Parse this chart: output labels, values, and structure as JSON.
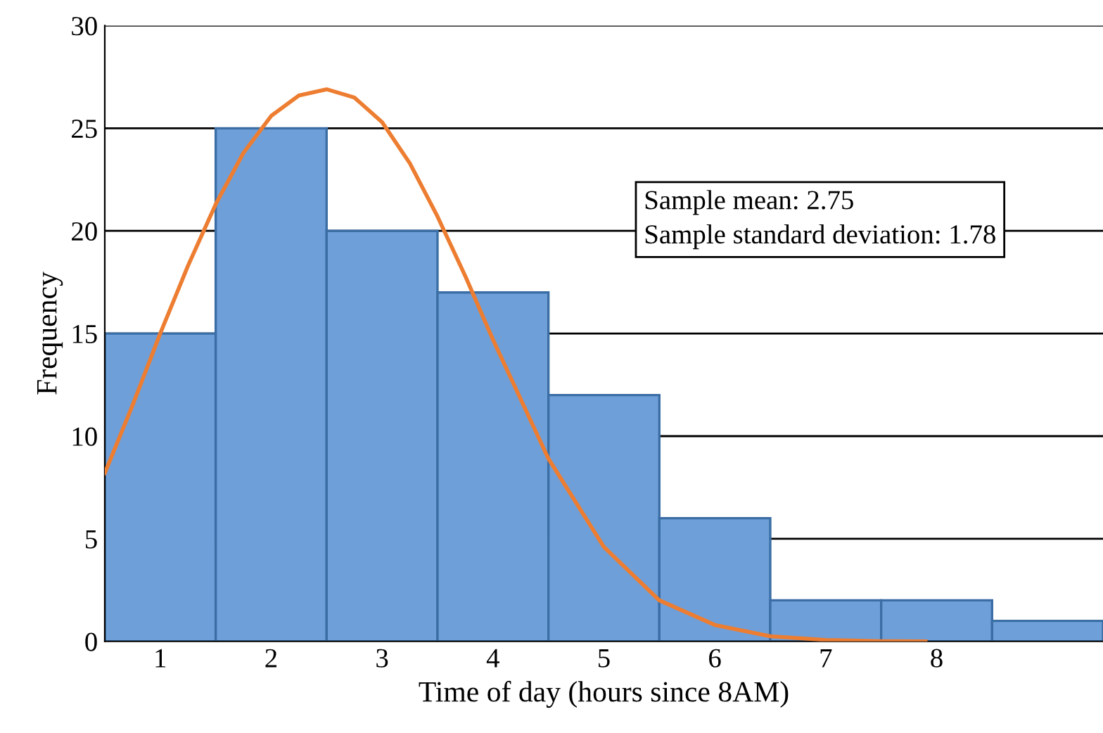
{
  "chart_data": {
    "type": "histogram",
    "xlabel": "Time of day (hours since 8AM)",
    "ylabel": "Frequency",
    "bins": [
      0.5,
      1.5,
      2.5,
      3.5,
      4.5,
      5.5,
      6.5,
      7.5,
      8.5,
      9.5
    ],
    "series": [
      {
        "color": "#6f9fd8",
        "values": [
          15,
          25,
          20,
          17,
          12,
          6,
          2,
          2,
          1
        ]
      },
      {
        "type": "line",
        "color": "#ed7d31",
        "x": [
          0.5,
          0.75,
          1,
          1.25,
          1.5,
          1.75,
          2,
          2.25,
          2.5,
          2.75,
          3,
          3.25,
          3.5,
          3.75,
          4,
          4.5,
          5,
          5.5,
          6,
          6.5,
          7,
          7.5,
          7.9
        ],
        "values": [
          8.2,
          11.5,
          15,
          18.3,
          21.3,
          23.8,
          25.6,
          26.6,
          26.9,
          26.5,
          25.3,
          23.3,
          20.7,
          17.8,
          14.7,
          8.9,
          4.6,
          2.0,
          0.8,
          0.25,
          0.07,
          0.01,
          0
        ]
      }
    ],
    "annotations": [
      "Sample mean: 2.75\nSample standard deviation: 1.78"
    ],
    "xlim": [
      0.5,
      9.5
    ],
    "xticks": [
      1,
      2,
      3,
      4,
      5,
      6,
      7,
      8
    ],
    "ylim": [
      0,
      30
    ],
    "yticks": [
      0,
      5,
      10,
      15,
      20,
      25,
      30
    ],
    "grid": "y",
    "marker": "none",
    "line_style": "solid"
  }
}
